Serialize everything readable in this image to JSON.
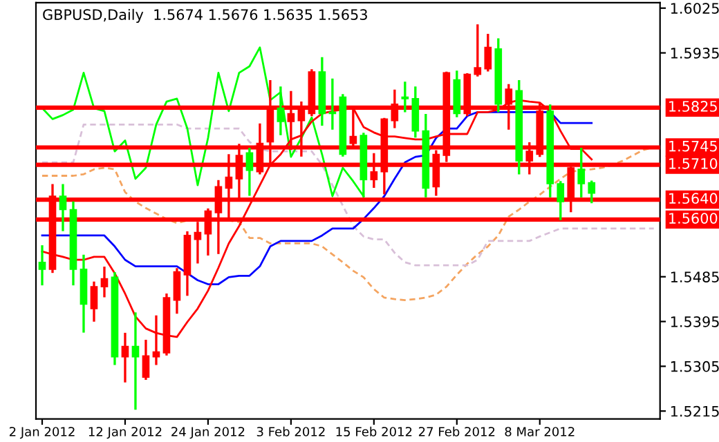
{
  "chart_data": {
    "type": "candlestick",
    "title": "GBPUSD,Daily  1.5674 1.5676 1.5635 1.5653",
    "categories": [
      "2 Jan 2012",
      null,
      null,
      null,
      null,
      null,
      null,
      null,
      "12 Jan 2012",
      null,
      null,
      null,
      null,
      null,
      null,
      null,
      "24 Jan 2012",
      null,
      null,
      null,
      null,
      null,
      null,
      null,
      "3 Feb 2012",
      null,
      null,
      null,
      null,
      null,
      null,
      null,
      "15 Feb 2012",
      null,
      null,
      null,
      null,
      null,
      null,
      null,
      "27 Feb 2012",
      null,
      null,
      null,
      null,
      null,
      null,
      null,
      "8 Mar 2012",
      null,
      null,
      null,
      null,
      null,
      null,
      null,
      null,
      null,
      null,
      null
    ],
    "ohlc": [
      [
        1.5514,
        1.5546,
        1.547,
        1.55
      ],
      [
        1.55,
        1.5669,
        1.5495,
        1.5647
      ],
      [
        1.5647,
        1.5669,
        1.5579,
        1.562
      ],
      [
        1.562,
        1.5634,
        1.547,
        1.55
      ],
      [
        1.55,
        1.5527,
        1.5375,
        1.543
      ],
      [
        1.5421,
        1.5473,
        1.5397,
        1.5465
      ],
      [
        1.5465,
        1.5503,
        1.5446,
        1.5481
      ],
      [
        1.5484,
        1.5492,
        1.531,
        1.5324
      ],
      [
        1.5324,
        1.537,
        1.5275,
        1.5345
      ],
      [
        1.5345,
        1.5411,
        1.522,
        1.5324
      ],
      [
        1.5283,
        1.5356,
        1.528,
        1.5326
      ],
      [
        1.5324,
        1.5405,
        1.531,
        1.5334
      ],
      [
        1.5332,
        1.5449,
        1.5329,
        1.5443
      ],
      [
        1.5438,
        1.55,
        1.5413,
        1.5495
      ],
      [
        1.5489,
        1.5574,
        1.5449,
        1.5568
      ],
      [
        1.556,
        1.5593,
        1.5514,
        1.5574
      ],
      [
        1.5571,
        1.562,
        1.553,
        1.5617
      ],
      [
        1.5614,
        1.5677,
        1.5533,
        1.5666
      ],
      [
        1.5663,
        1.5729,
        1.5606,
        1.5685
      ],
      [
        1.5682,
        1.575,
        1.5642,
        1.5729
      ],
      [
        1.5734,
        1.5742,
        1.565,
        1.5699
      ],
      [
        1.5696,
        1.5791,
        1.5693,
        1.5753
      ],
      [
        1.5756,
        1.5878,
        1.571,
        1.5824
      ],
      [
        1.5824,
        1.5865,
        1.5772,
        1.5797
      ],
      [
        1.5797,
        1.5856,
        1.5742,
        1.5813
      ],
      [
        1.5799,
        1.5835,
        1.5729,
        1.5824
      ],
      [
        1.5813,
        1.59,
        1.581,
        1.5897
      ],
      [
        1.5897,
        1.5924,
        1.5791,
        1.5813
      ],
      [
        1.5816,
        1.5881,
        1.5783,
        1.5813
      ],
      [
        1.5846,
        1.585,
        1.5729,
        1.5731
      ],
      [
        1.5753,
        1.5824,
        1.575,
        1.5767
      ],
      [
        1.5769,
        1.5772,
        1.5647,
        1.568
      ],
      [
        1.568,
        1.5731,
        1.5666,
        1.5696
      ],
      [
        1.5696,
        1.5802,
        1.5653,
        1.5802
      ],
      [
        1.5799,
        1.5859,
        1.5786,
        1.5832
      ],
      [
        1.5846,
        1.5875,
        1.5818,
        1.5843
      ],
      [
        1.5843,
        1.5865,
        1.5767,
        1.5778
      ],
      [
        1.5778,
        1.581,
        1.5647,
        1.5663
      ],
      [
        1.5666,
        1.5737,
        1.565,
        1.5731
      ],
      [
        1.5729,
        1.5895,
        1.5718,
        1.5895
      ],
      [
        1.5881,
        1.5897,
        1.5808,
        1.5813
      ],
      [
        1.5813,
        1.5892,
        1.581,
        1.5892
      ],
      [
        1.5892,
        1.599,
        1.589,
        1.5905
      ],
      [
        1.5903,
        1.5971,
        1.59,
        1.5946
      ],
      [
        1.5943,
        1.5962,
        1.5818,
        1.5832
      ],
      [
        1.5832,
        1.587,
        1.5783,
        1.5862
      ],
      [
        1.5859,
        1.5878,
        1.5693,
        1.5718
      ],
      [
        1.5718,
        1.5753,
        1.5693,
        1.5737
      ],
      [
        1.5731,
        1.5832,
        1.5728,
        1.5818
      ],
      [
        1.5818,
        1.5829,
        1.5647,
        1.5672
      ],
      [
        1.5672,
        1.5675,
        1.5601,
        1.5636
      ],
      [
        1.5642,
        1.5704,
        1.5617,
        1.5704
      ],
      [
        1.5701,
        1.5742,
        1.5647,
        1.5672
      ],
      [
        1.5674,
        1.5676,
        1.5635,
        1.5653
      ],
      null,
      null,
      null,
      null,
      null,
      null
    ],
    "colors": [
      "#00ff00",
      "#ff0000",
      "#00ff00",
      "#00ff00",
      "#00ff00",
      "#ff0000",
      "#ff0000",
      "#00ff00",
      "#ff0000",
      "#00ff00",
      "#ff0000",
      "#ff0000",
      "#ff0000",
      "#ff0000",
      "#ff0000",
      "#ff0000",
      "#ff0000",
      "#ff0000",
      "#ff0000",
      "#ff0000",
      "#00ff00",
      "#ff0000",
      "#ff0000",
      "#00ff00",
      "#ff0000",
      "#ff0000",
      "#ff0000",
      "#00ff00",
      "#00ff00",
      "#00ff00",
      "#ff0000",
      "#00ff00",
      "#ff0000",
      "#ff0000",
      "#ff0000",
      "#00ff00",
      "#00ff00",
      "#00ff00",
      "#ff0000",
      "#ff0000",
      "#00ff00",
      "#ff0000",
      "#ff0000",
      "#ff0000",
      "#00ff00",
      "#ff0000",
      "#00ff00",
      "#ff0000",
      "#ff0000",
      "#00ff00",
      "#00ff00",
      "#ff0000",
      "#00ff00",
      "#00ff00",
      null,
      null,
      null,
      null,
      null,
      null
    ],
    "series": [
      {
        "type": "line",
        "color": "#f4a460",
        "line_style": "dashed",
        "values": [
          1.5688,
          1.5688,
          1.5688,
          1.5688,
          1.5691,
          1.5701,
          1.5704,
          1.5701,
          1.5655,
          1.5636,
          1.5623,
          1.5612,
          1.5601,
          1.5593,
          1.5598,
          1.5601,
          1.5601,
          1.5598,
          1.5598,
          1.5595,
          1.5563,
          1.5563,
          1.5552,
          1.5552,
          1.5552,
          1.5552,
          1.5552,
          1.5546,
          1.553,
          1.5514,
          1.5497,
          1.5484,
          1.546,
          1.5443,
          1.544,
          1.5438,
          1.544,
          1.5443,
          1.5449,
          1.5465,
          1.5489,
          1.5511,
          1.553,
          1.5546,
          1.5568,
          1.5606,
          1.562,
          1.5636,
          1.565,
          1.5666,
          1.5682,
          1.5696,
          1.5699,
          1.5701,
          1.5704,
          1.571,
          1.5718,
          1.5729,
          1.574,
          1.5745
        ]
      },
      {
        "type": "line",
        "color": "#d8bfd8",
        "line_style": "dashed",
        "values": [
          1.5715,
          1.5715,
          1.5715,
          1.5715,
          1.5791,
          1.5791,
          1.5791,
          1.5791,
          1.5791,
          1.5791,
          1.5791,
          1.5791,
          1.5791,
          1.5791,
          1.5783,
          1.5783,
          1.5783,
          1.5783,
          1.5783,
          1.5783,
          1.5756,
          1.5742,
          1.5737,
          1.5737,
          1.5737,
          1.5737,
          1.5737,
          1.571,
          1.5669,
          1.5628,
          1.5587,
          1.5566,
          1.556,
          1.556,
          1.5533,
          1.5514,
          1.5508,
          1.5508,
          1.5508,
          1.5508,
          1.5508,
          1.5508,
          1.5519,
          1.5557,
          1.5557,
          1.5557,
          1.5557,
          1.5557,
          1.5566,
          1.5574,
          1.5582,
          1.5582,
          1.5582,
          1.5582,
          1.5582,
          1.5582,
          1.5582,
          1.5582,
          1.5582,
          1.5582
        ]
      },
      {
        "type": "line",
        "color": "#00ff00",
        "values": [
          1.5824,
          1.5802,
          1.581,
          1.5821,
          1.5895,
          1.5824,
          1.5818,
          1.5737,
          1.5759,
          1.5682,
          1.5704,
          1.5791,
          1.5837,
          1.5843,
          1.5783,
          1.5669,
          1.5764,
          1.5895,
          1.5818,
          1.5895,
          1.5908,
          1.5946,
          1.584,
          1.5856,
          1.5726,
          1.5764,
          1.5805,
          1.5731,
          1.5647,
          1.5704,
          1.5677,
          1.5647,
          null,
          null,
          null,
          null,
          null,
          null,
          null,
          null,
          null,
          null,
          null,
          null,
          null,
          null,
          null,
          null,
          null,
          null,
          null,
          null,
          null,
          null,
          null,
          null,
          null,
          null,
          null,
          null
        ]
      },
      {
        "type": "line",
        "color": "#0000ff",
        "values": [
          1.5568,
          1.5568,
          1.5568,
          1.5568,
          1.5568,
          1.5568,
          1.5568,
          1.5546,
          1.5519,
          1.5506,
          1.5506,
          1.5506,
          1.5506,
          1.5506,
          1.5492,
          1.5478,
          1.547,
          1.547,
          1.5484,
          1.5487,
          1.5487,
          1.5506,
          1.5546,
          1.5557,
          1.5557,
          1.5557,
          1.5557,
          1.5568,
          1.5582,
          1.5582,
          1.5582,
          1.5601,
          1.5623,
          1.5647,
          1.5682,
          1.5715,
          1.5726,
          1.5729,
          1.5764,
          1.5783,
          1.5783,
          1.5808,
          1.5816,
          1.5816,
          1.5816,
          1.5816,
          1.5816,
          1.5816,
          1.5816,
          1.5816,
          1.5794,
          1.5794,
          1.5794,
          1.5794,
          null,
          null,
          null,
          null,
          null,
          null
        ]
      },
      {
        "type": "line",
        "color": "#ff0000",
        "values": [
          1.5536,
          1.553,
          1.5525,
          1.5519,
          1.5519,
          1.5525,
          1.5525,
          1.5492,
          1.5451,
          1.5405,
          1.5381,
          1.5372,
          1.5367,
          1.5364,
          1.5394,
          1.5421,
          1.5457,
          1.5503,
          1.5552,
          1.5587,
          1.5628,
          1.5669,
          1.571,
          1.5731,
          1.5761,
          1.5769,
          1.5797,
          1.5813,
          1.5818,
          1.5821,
          1.5824,
          1.5786,
          1.5775,
          1.5767,
          1.5767,
          1.5764,
          1.5761,
          1.5761,
          1.5767,
          1.5772,
          1.5772,
          1.5772,
          1.5816,
          1.5816,
          1.5821,
          1.5835,
          1.584,
          1.5837,
          1.5835,
          1.5818,
          1.5778,
          1.5742,
          1.5742,
          1.5721,
          null,
          null,
          null,
          null,
          null,
          null
        ]
      }
    ],
    "ref_lines": [
      {
        "axis": "y",
        "value": 1.5825,
        "label": "1.5825",
        "color": "#ff0000"
      },
      {
        "axis": "y",
        "value": 1.5745,
        "label": "1.5745",
        "color": "#ff0000"
      },
      {
        "axis": "y",
        "value": 1.571,
        "label": "1.5710",
        "color": "#ff0000"
      },
      {
        "axis": "y",
        "value": 1.564,
        "label": "1.5640",
        "color": "#ff0000"
      },
      {
        "axis": "y",
        "value": 1.56,
        "label": "1.5600",
        "color": "#ff0000"
      }
    ],
    "ylim": [
      1.5199,
      1.6036
    ],
    "yticks": [
      1.6025,
      1.5935,
      1.5485,
      1.5395,
      1.5305,
      1.5215
    ],
    "grid": false
  }
}
